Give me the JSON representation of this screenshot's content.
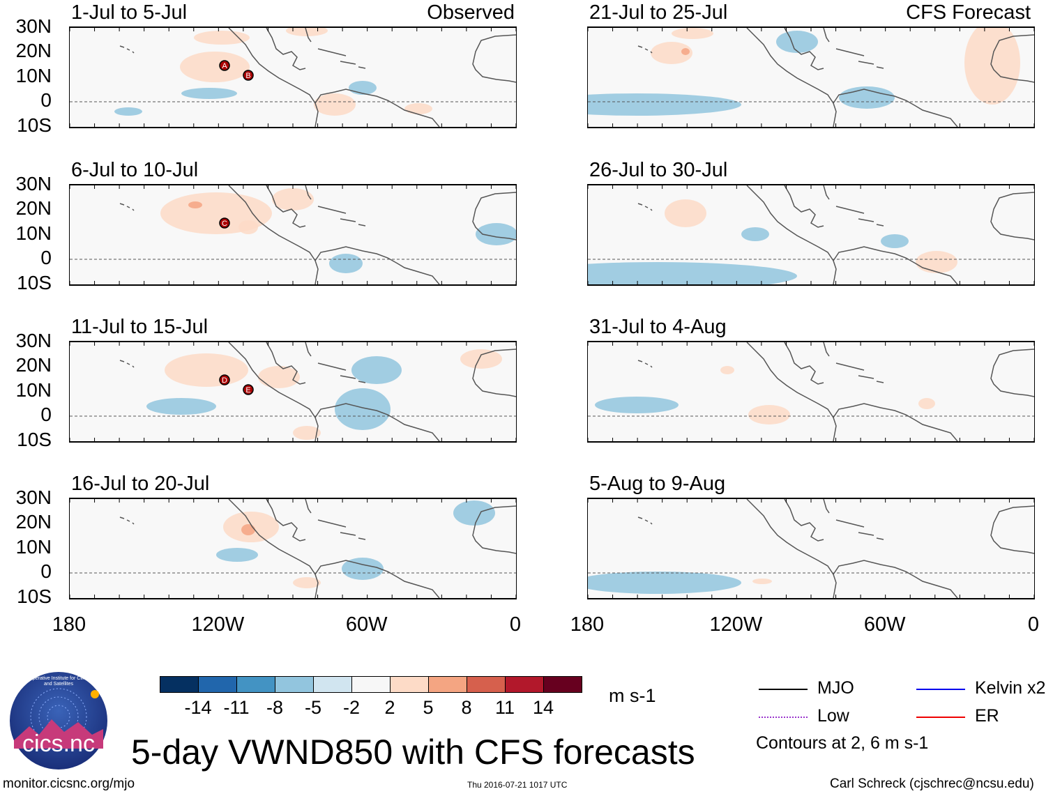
{
  "main_title": "5-day VWND850 with CFS forecasts",
  "observed_tag": "Observed",
  "forecast_tag": "CFS Forecast",
  "lat_labels": [
    "30N",
    "20N",
    "10N",
    "0",
    "10S"
  ],
  "lon_labels": [
    "180",
    "120W",
    "60W",
    "0"
  ],
  "panels": [
    {
      "title": "1-Jul to 5-Jul",
      "storms": [
        "A",
        "B"
      ]
    },
    {
      "title": "6-Jul to 10-Jul",
      "storms": [
        "C"
      ]
    },
    {
      "title": "11-Jul to 15-Jul",
      "storms": [
        "D",
        "E"
      ]
    },
    {
      "title": "16-Jul to 20-Jul",
      "storms": []
    },
    {
      "title": "21-Jul to 25-Jul",
      "storms": []
    },
    {
      "title": "26-Jul to 30-Jul",
      "storms": []
    },
    {
      "title": "31-Jul to 4-Aug",
      "storms": []
    },
    {
      "title": "5-Aug to 9-Aug",
      "storms": []
    }
  ],
  "colorbar": {
    "colors": [
      "#053061",
      "#2166ac",
      "#4393c3",
      "#92c5de",
      "#d1e5f0",
      "#f7f7f7",
      "#fddbc7",
      "#f4a582",
      "#d6604d",
      "#b2182b",
      "#67001f"
    ],
    "labels": [
      "-14",
      "-11",
      "-8",
      "-5",
      "-2",
      "2",
      "5",
      "8",
      "11",
      "14"
    ],
    "units": "m s-1"
  },
  "legend": {
    "items": [
      {
        "label": "MJO",
        "color": "#000000"
      },
      {
        "label": "Kelvin x2",
        "color": "#0000ee"
      },
      {
        "label": "Low",
        "color": "#9933cc"
      },
      {
        "label": "ER",
        "color": "#ee0000"
      }
    ],
    "contours_note": "Contours at 2, 6 m s-1"
  },
  "logo_text": "cics.nc",
  "logo_ring_text": "Cooperative Institute for Climate and Satellites",
  "footer": {
    "url": "monitor.cicsnc.org/mjo",
    "timestamp": "Thu 2016-07-21 1017 UTC",
    "author": "Carl Schreck (cjschrec@ncsu.edu)"
  }
}
